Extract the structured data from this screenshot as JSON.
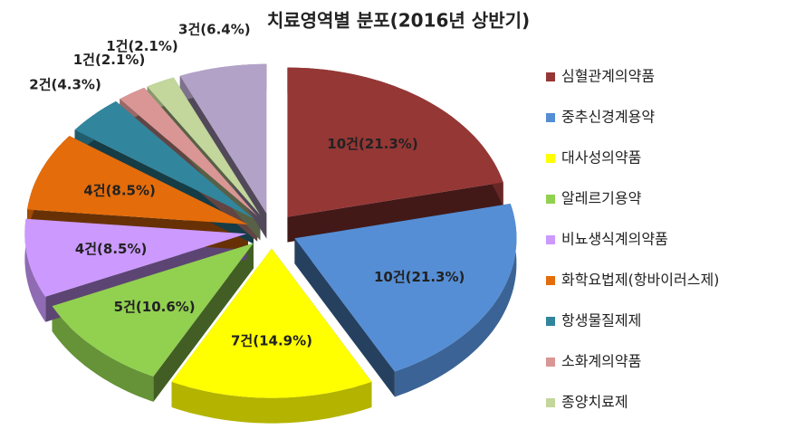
{
  "chart_data": {
    "type": "pie",
    "title": "치료영역별 분포(2016년 상반기)",
    "categories": [
      "심혈관계의약품",
      "중추신경계용약",
      "대사성의약품",
      "알레르기용약",
      "비뇨생식계의약품",
      "화학요법제(항바이러스제)",
      "항생물질제제",
      "소화계의약품",
      "종양치료제",
      null
    ],
    "values": [
      10,
      10,
      7,
      5,
      4,
      4,
      2,
      1,
      1,
      3
    ],
    "value_labels": [
      "10건(21.3%)",
      "10건(21.3%)",
      "7건(14.9%)",
      "5건(10.6%)",
      "4건(8.5%)",
      "4건(8.5%)",
      "2건(4.3%)",
      "1건(2.1%)",
      "1건(2.1%)",
      "3건(6.4%)"
    ],
    "colors": [
      "#953735",
      "#558ed5",
      "#ffff00",
      "#92d050",
      "#cc99ff",
      "#e46c0a",
      "#31859c",
      "#d99694",
      "#c3d69b",
      "#b3a2c7"
    ]
  }
}
